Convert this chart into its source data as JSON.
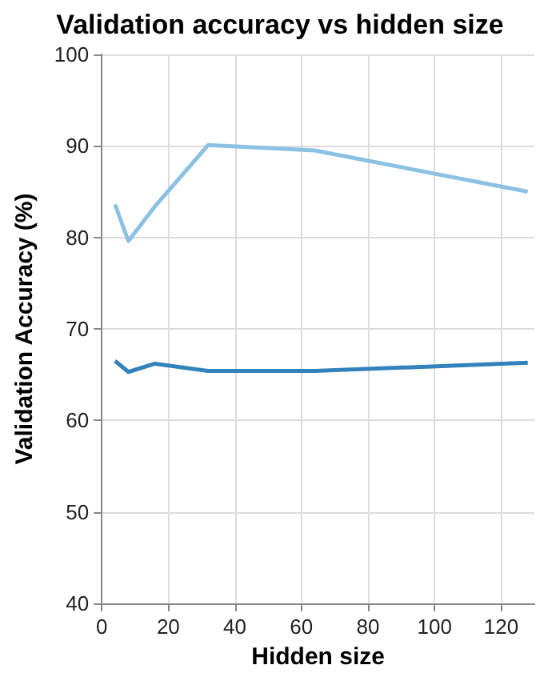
{
  "chart_data": {
    "type": "line",
    "title": "Validation accuracy vs hidden size",
    "xlabel": "Hidden size",
    "ylabel": "Validation Accuracy (%)",
    "x": [
      4,
      8,
      16,
      32,
      64,
      128
    ],
    "series": [
      {
        "color": "#8cc1e3",
        "values": [
          83.6,
          79.6,
          83.4,
          90.1,
          89.5,
          85.0
        ]
      },
      {
        "color": "#3182bd",
        "values": [
          66.5,
          65.3,
          66.2,
          65.4,
          65.4,
          66.3
        ]
      }
    ],
    "xlim": [
      0,
      130
    ],
    "xticks": [
      0,
      20,
      40,
      60,
      80,
      100,
      120
    ],
    "ylim": [
      40,
      100
    ],
    "yticks": [
      40,
      50,
      60,
      70,
      80,
      90,
      100
    ],
    "grid": true,
    "marker": "none",
    "line_style": "solid"
  }
}
